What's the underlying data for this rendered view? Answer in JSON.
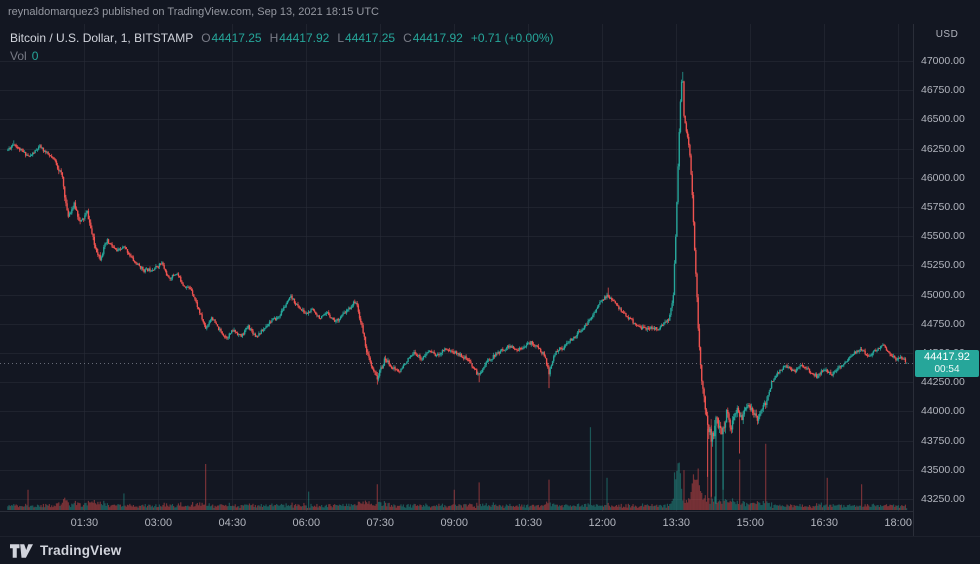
{
  "publish_bar": {
    "text": "reynaldomarquez3 published on TradingView.com, Sep 13, 2021 18:15 UTC"
  },
  "legend": {
    "symbol": "Bitcoin / U.S. Dollar",
    "sep1": ", ",
    "interval": "1",
    "sep2": ", ",
    "exchange": "BITSTAMP",
    "open_label": "O",
    "open_value": "44417.25",
    "high_label": "H",
    "high_value": "44417.92",
    "low_label": "L",
    "low_value": "44417.25",
    "close_label": "C",
    "close_value": "44417.92",
    "change": "+0.71 (+0.00%)",
    "volume_label": "Vol",
    "volume_value": "0"
  },
  "price_axis": {
    "currency": "USD",
    "last_price": "44417.92",
    "countdown": "00:54"
  },
  "footer": {
    "brand": "TradingView"
  },
  "colors": {
    "bg": "#131722",
    "border": "#2a2e39",
    "grid": "rgba(42,46,57,0.55)",
    "text_primary": "#d1d4dc",
    "text_secondary": "#787b86",
    "axis_text": "#b2b5be",
    "publish_text": "#9598a1",
    "up": "#26a69a",
    "down": "#ef5350",
    "vol_up": "rgba(38,166,154,0.45)",
    "vol_down": "rgba(239,83,80,0.45)",
    "price_line": "rgba(140,144,155,0.7)",
    "badge_bg": "#26a69a"
  },
  "chart_data": {
    "type": "candlestick",
    "title": "Bitcoin / U.S. Dollar, 1, BITSTAMP",
    "symbol": "BTCUSD",
    "exchange": "BITSTAMP",
    "interval_minutes": 1,
    "legend_position": "top-left",
    "grid": true,
    "time_range_hours": [
      -0.21,
      18.3
    ],
    "price_range": [
      43148,
      47316
    ],
    "price_ticks": [
      47000,
      46750,
      46500,
      46250,
      46000,
      45750,
      45500,
      45250,
      45000,
      44750,
      44500,
      44250,
      44000,
      43750,
      43500,
      43250
    ],
    "time_ticks": [
      {
        "t": 1.5,
        "label": "01:30"
      },
      {
        "t": 3.0,
        "label": "03:00"
      },
      {
        "t": 4.5,
        "label": "04:30"
      },
      {
        "t": 6.0,
        "label": "06:00"
      },
      {
        "t": 7.5,
        "label": "07:30"
      },
      {
        "t": 9.0,
        "label": "09:00"
      },
      {
        "t": 10.5,
        "label": "10:30"
      },
      {
        "t": 12.0,
        "label": "12:00"
      },
      {
        "t": 13.5,
        "label": "13:30"
      },
      {
        "t": 15.0,
        "label": "15:00"
      },
      {
        "t": 16.5,
        "label": "16:30"
      },
      {
        "t": 18.0,
        "label": "18:00"
      }
    ],
    "last": {
      "open": 44417.25,
      "high": 44417.92,
      "low": 44417.25,
      "close": 44417.92,
      "change": 0.71,
      "change_pct": 0.0
    },
    "current_price": 44417.92,
    "price_path": [
      [
        -0.05,
        46240
      ],
      [
        0.07,
        46290
      ],
      [
        0.2,
        46230
      ],
      [
        0.39,
        46170
      ],
      [
        0.6,
        46260
      ],
      [
        0.75,
        46200
      ],
      [
        0.9,
        46150
      ],
      [
        1.05,
        46020
      ],
      [
        1.16,
        45680
      ],
      [
        1.3,
        45780
      ],
      [
        1.42,
        45620
      ],
      [
        1.56,
        45710
      ],
      [
        1.7,
        45430
      ],
      [
        1.82,
        45310
      ],
      [
        1.96,
        45450
      ],
      [
        2.16,
        45360
      ],
      [
        2.31,
        45400
      ],
      [
        2.51,
        45280
      ],
      [
        2.71,
        45210
      ],
      [
        2.91,
        45230
      ],
      [
        3.07,
        45280
      ],
      [
        3.21,
        45140
      ],
      [
        3.37,
        45190
      ],
      [
        3.51,
        45080
      ],
      [
        3.67,
        45040
      ],
      [
        3.81,
        44870
      ],
      [
        3.96,
        44700
      ],
      [
        4.08,
        44800
      ],
      [
        4.22,
        44700
      ],
      [
        4.38,
        44630
      ],
      [
        4.52,
        44700
      ],
      [
        4.68,
        44650
      ],
      [
        4.82,
        44740
      ],
      [
        4.98,
        44650
      ],
      [
        5.12,
        44700
      ],
      [
        5.26,
        44770
      ],
      [
        5.43,
        44800
      ],
      [
        5.59,
        44910
      ],
      [
        5.69,
        44970
      ],
      [
        5.83,
        44890
      ],
      [
        5.99,
        44830
      ],
      [
        6.13,
        44870
      ],
      [
        6.29,
        44800
      ],
      [
        6.43,
        44850
      ],
      [
        6.59,
        44780
      ],
      [
        6.73,
        44830
      ],
      [
        6.88,
        44890
      ],
      [
        7.0,
        44950
      ],
      [
        7.14,
        44700
      ],
      [
        7.24,
        44480
      ],
      [
        7.34,
        44350
      ],
      [
        7.44,
        44280
      ],
      [
        7.6,
        44440
      ],
      [
        7.74,
        44370
      ],
      [
        7.9,
        44340
      ],
      [
        8.04,
        44440
      ],
      [
        8.2,
        44510
      ],
      [
        8.34,
        44460
      ],
      [
        8.5,
        44530
      ],
      [
        8.65,
        44480
      ],
      [
        8.81,
        44540
      ],
      [
        8.95,
        44510
      ],
      [
        9.11,
        44480
      ],
      [
        9.25,
        44440
      ],
      [
        9.39,
        44370
      ],
      [
        9.49,
        44300
      ],
      [
        9.65,
        44420
      ],
      [
        9.81,
        44480
      ],
      [
        9.96,
        44530
      ],
      [
        10.12,
        44570
      ],
      [
        10.26,
        44530
      ],
      [
        10.42,
        44570
      ],
      [
        10.56,
        44590
      ],
      [
        10.7,
        44540
      ],
      [
        10.82,
        44480
      ],
      [
        10.92,
        44320
      ],
      [
        11.06,
        44510
      ],
      [
        11.22,
        44540
      ],
      [
        11.37,
        44610
      ],
      [
        11.53,
        44680
      ],
      [
        11.67,
        44740
      ],
      [
        11.83,
        44850
      ],
      [
        11.97,
        44950
      ],
      [
        12.11,
        45000
      ],
      [
        12.23,
        44940
      ],
      [
        12.37,
        44870
      ],
      [
        12.53,
        44800
      ],
      [
        12.67,
        44740
      ],
      [
        12.83,
        44700
      ],
      [
        12.98,
        44710
      ],
      [
        13.12,
        44700
      ],
      [
        13.24,
        44740
      ],
      [
        13.36,
        44800
      ],
      [
        13.44,
        45000
      ],
      [
        13.5,
        45640
      ],
      [
        13.56,
        46410
      ],
      [
        13.6,
        46800
      ],
      [
        13.63,
        46860
      ],
      [
        13.66,
        46500
      ],
      [
        13.72,
        46370
      ],
      [
        13.78,
        46200
      ],
      [
        13.84,
        45720
      ],
      [
        13.9,
        45130
      ],
      [
        13.96,
        44610
      ],
      [
        14.02,
        44270
      ],
      [
        14.08,
        44060
      ],
      [
        14.14,
        43880
      ],
      [
        14.22,
        43760
      ],
      [
        14.32,
        43930
      ],
      [
        14.42,
        43800
      ],
      [
        14.52,
        43970
      ],
      [
        14.62,
        43860
      ],
      [
        14.72,
        44010
      ],
      [
        14.84,
        43940
      ],
      [
        14.94,
        44060
      ],
      [
        15.04,
        44000
      ],
      [
        15.14,
        43930
      ],
      [
        15.24,
        44030
      ],
      [
        15.34,
        44100
      ],
      [
        15.44,
        44270
      ],
      [
        15.58,
        44350
      ],
      [
        15.72,
        44400
      ],
      [
        15.89,
        44340
      ],
      [
        16.05,
        44400
      ],
      [
        16.19,
        44340
      ],
      [
        16.35,
        44290
      ],
      [
        16.49,
        44350
      ],
      [
        16.65,
        44310
      ],
      [
        16.79,
        44370
      ],
      [
        16.96,
        44440
      ],
      [
        17.1,
        44510
      ],
      [
        17.26,
        44540
      ],
      [
        17.4,
        44480
      ],
      [
        17.56,
        44530
      ],
      [
        17.7,
        44570
      ],
      [
        17.84,
        44480
      ],
      [
        17.96,
        44440
      ],
      [
        18.06,
        44460
      ],
      [
        18.17,
        44418
      ]
    ],
    "wick_events": [
      {
        "t": 0.07,
        "high": 46320
      },
      {
        "t": 7.45,
        "low": 44230
      },
      {
        "t": 9.5,
        "low": 44250
      },
      {
        "t": 10.92,
        "low": 44200
      },
      {
        "t": 12.12,
        "high": 45060
      },
      {
        "t": 13.63,
        "high": 46906
      },
      {
        "t": 14.13,
        "low": 43440
      },
      {
        "t": 14.21,
        "low": 43270
      },
      {
        "t": 14.3,
        "low": 43210
      },
      {
        "t": 14.46,
        "low": 43330
      },
      {
        "t": 14.78,
        "low": 43640
      }
    ],
    "volume_spikes": [
      {
        "t": 0.35,
        "h": 0.22
      },
      {
        "t": 2.3,
        "h": 0.18
      },
      {
        "t": 3.95,
        "h": 0.5
      },
      {
        "t": 6.05,
        "h": 0.2
      },
      {
        "t": 7.45,
        "h": 0.28
      },
      {
        "t": 9.0,
        "h": 0.22
      },
      {
        "t": 9.5,
        "h": 0.3
      },
      {
        "t": 10.92,
        "h": 0.33
      },
      {
        "t": 11.75,
        "h": 0.9
      },
      {
        "t": 12.1,
        "h": 0.35
      },
      {
        "t": 15.31,
        "h": 0.72
      },
      {
        "t": 16.55,
        "h": 0.35
      },
      {
        "t": 17.25,
        "h": 0.28
      }
    ],
    "volatility_zones": [
      {
        "t0": 0.95,
        "t1": 2.05,
        "mult": 1.6
      },
      {
        "t0": 7.1,
        "t1": 7.7,
        "mult": 1.5
      },
      {
        "t0": 13.4,
        "t1": 13.88,
        "mult": 1.7
      },
      {
        "t0": 13.88,
        "t1": 14.65,
        "mult": 3.0
      },
      {
        "t0": 14.65,
        "t1": 15.35,
        "mult": 1.9
      }
    ],
    "candles_t_range": [
      -0.05,
      18.17
    ],
    "candle_count": 760,
    "noise_amp": 28,
    "volume_scale": 0.07,
    "seed": 11
  }
}
